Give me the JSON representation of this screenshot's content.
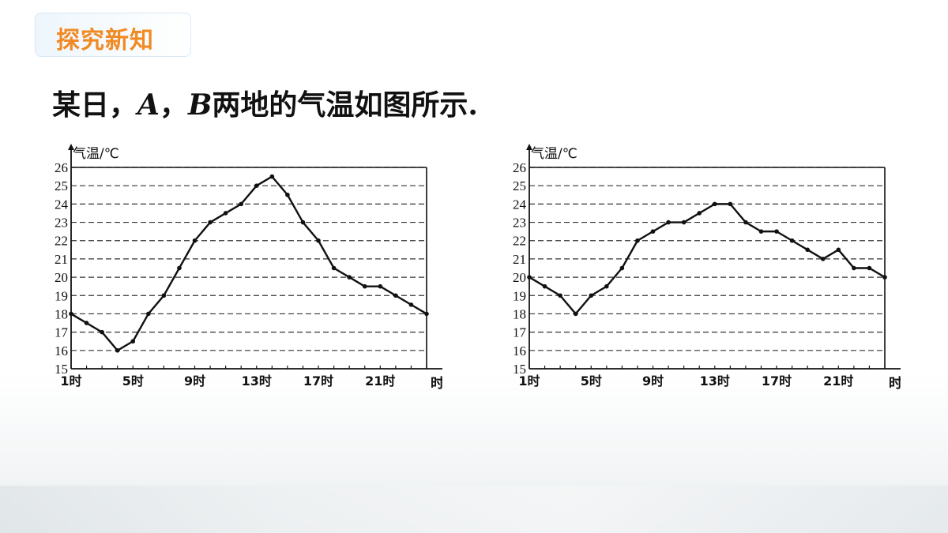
{
  "header": {
    "badge_label": "探究新知",
    "prefix": "某日，",
    "a": "A",
    "sep": "，",
    "b": "B",
    "suffix": "两地的气温如图所示."
  },
  "colors": {
    "badge_text": "#f08a24",
    "line": "#111111"
  },
  "chart_data": [
    {
      "type": "line",
      "ylabel": "气温/℃",
      "xlabel": "时刻",
      "ylim": [
        15,
        26
      ],
      "yticks": [
        15,
        16,
        17,
        18,
        19,
        20,
        21,
        22,
        23,
        24,
        25,
        26
      ],
      "xlim": [
        1,
        24
      ],
      "xtick_values": [
        1,
        5,
        9,
        13,
        17,
        21
      ],
      "xtick_labels": [
        "1时",
        "5时",
        "9时",
        "13时",
        "17时",
        "21时"
      ],
      "grid": "dashed-horizontal",
      "x": [
        1,
        2,
        3,
        4,
        5,
        6,
        7,
        8,
        9,
        10,
        11,
        12,
        13,
        14,
        15,
        16,
        17,
        18,
        19,
        20,
        21,
        22,
        23,
        24
      ],
      "values": [
        18,
        17.5,
        17,
        16,
        16.5,
        18,
        19,
        20.5,
        22,
        23,
        23.5,
        24,
        25,
        25.5,
        24.5,
        23,
        22,
        20.5,
        20,
        19.5,
        19.5,
        19,
        18.5,
        18
      ]
    },
    {
      "type": "line",
      "ylabel": "气温/℃",
      "xlabel": "时刻",
      "ylim": [
        15,
        26
      ],
      "yticks": [
        15,
        16,
        17,
        18,
        19,
        20,
        21,
        22,
        23,
        24,
        25,
        26
      ],
      "xlim": [
        1,
        24
      ],
      "xtick_values": [
        1,
        5,
        9,
        13,
        17,
        21
      ],
      "xtick_labels": [
        "1时",
        "5时",
        "9时",
        "13时",
        "17时",
        "21时"
      ],
      "grid": "dashed-horizontal",
      "x": [
        1,
        2,
        3,
        4,
        5,
        6,
        7,
        8,
        9,
        10,
        11,
        12,
        13,
        14,
        15,
        16,
        17,
        18,
        19,
        20,
        21,
        22,
        23,
        24
      ],
      "values": [
        20,
        19.5,
        19,
        18,
        19,
        19.5,
        20.5,
        22,
        22.5,
        23,
        23,
        23.5,
        24,
        24,
        23,
        22.5,
        22.5,
        22,
        21.5,
        21,
        21.5,
        20.5,
        20.5,
        20
      ]
    }
  ]
}
